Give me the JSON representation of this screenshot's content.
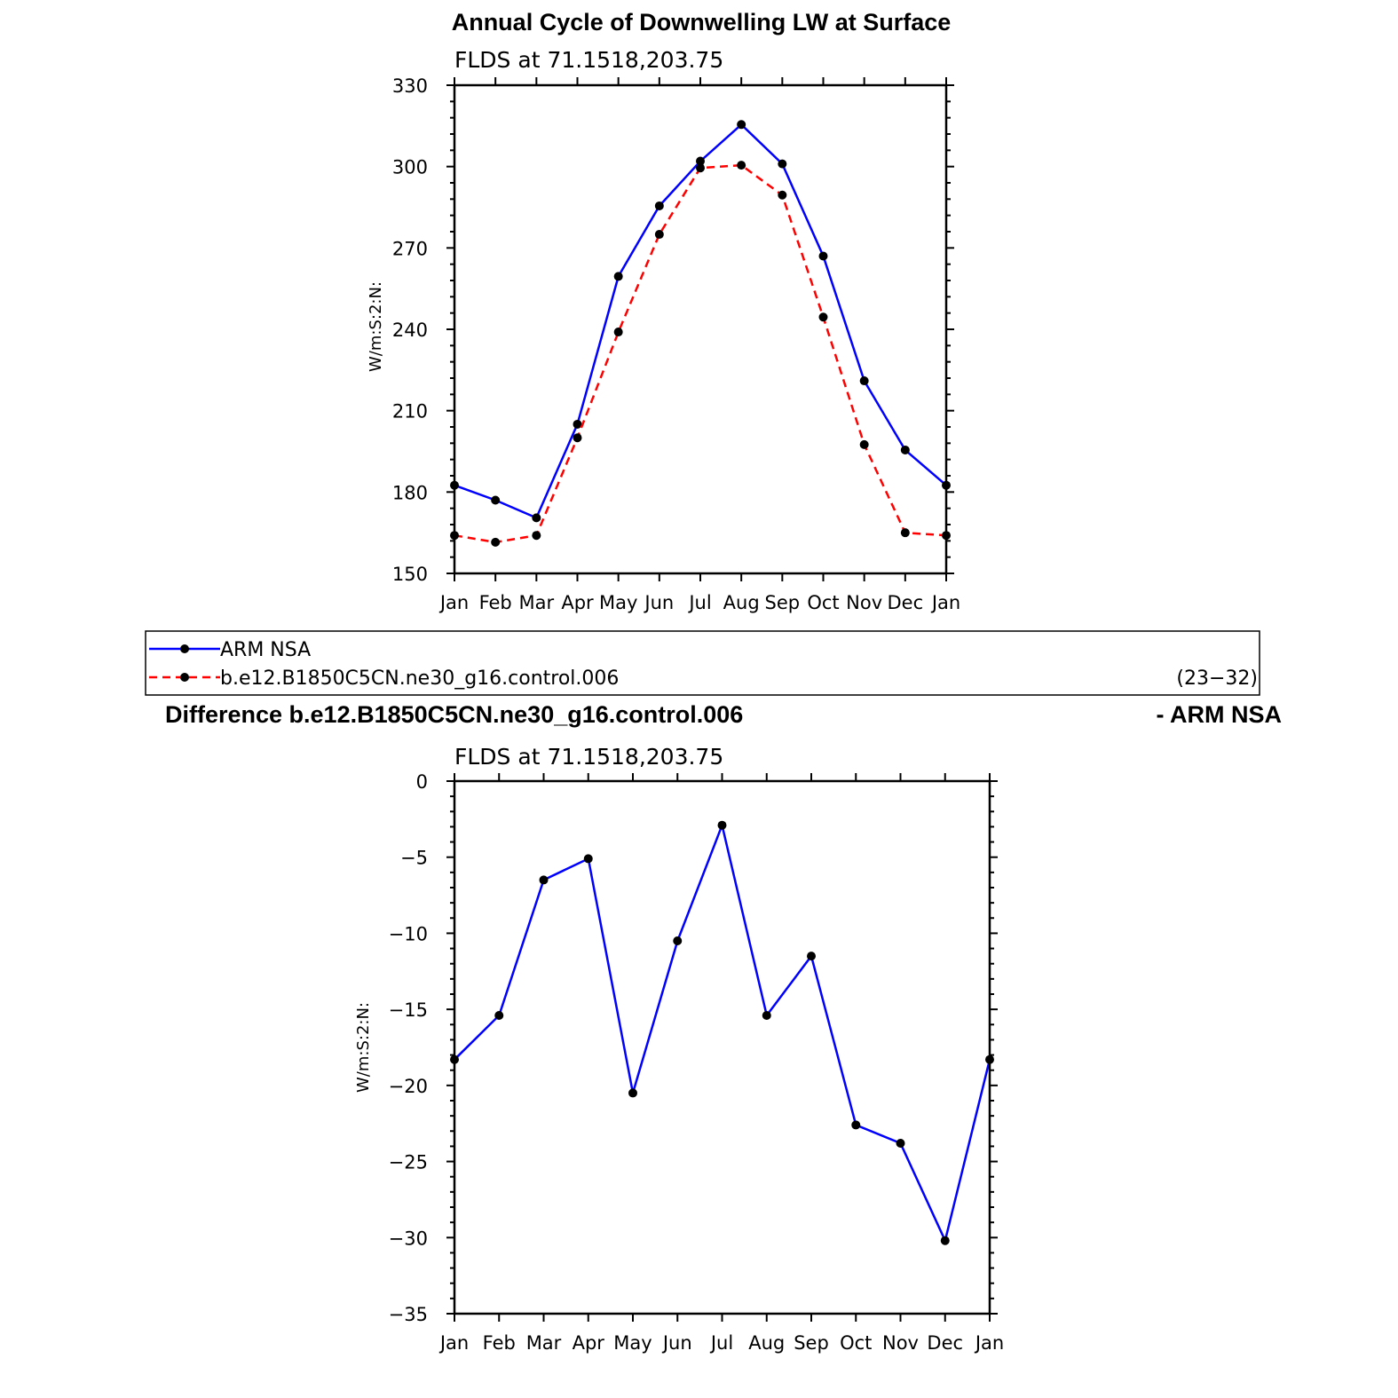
{
  "chart_data": [
    {
      "type": "line",
      "title": "Annual Cycle of Downwelling LW at Surface",
      "subtitle": "FLDS at 71.1518,203.75",
      "xlabel": "",
      "ylabel": "W/m:S:2:N:",
      "categories": [
        "Jan",
        "Feb",
        "Mar",
        "Apr",
        "May",
        "Jun",
        "Jul",
        "Aug",
        "Sep",
        "Oct",
        "Nov",
        "Dec",
        "Jan"
      ],
      "ylim": [
        150,
        330
      ],
      "yticks": [
        "150",
        "180",
        "210",
        "240",
        "270",
        "300",
        "330"
      ],
      "series": [
        {
          "name": "ARM NSA",
          "color": "#0000ff",
          "dash": "solid",
          "values": [
            182.5,
            177,
            170.5,
            205,
            259.5,
            285.5,
            302,
            315.5,
            301,
            267,
            221,
            195.5,
            182.5
          ]
        },
        {
          "name": "b.e12.B1850C5CN.ne30_g16.control.006",
          "color": "#ff0000",
          "dash": "dashed",
          "values": [
            164,
            161.5,
            164,
            200,
            239,
            275,
            299.5,
            300.5,
            289.5,
            244.5,
            197.5,
            165,
            164
          ]
        }
      ],
      "legend_note": "(23−32)",
      "legend": "below"
    },
    {
      "type": "line",
      "title_left": "Difference b.e12.B1850C5CN.ne30_g16.control.006",
      "title_right": "- ARM NSA",
      "subtitle": "FLDS at 71.1518,203.75",
      "xlabel": "",
      "ylabel": "W/m:S:2:N:",
      "categories": [
        "Jan",
        "Feb",
        "Mar",
        "Apr",
        "May",
        "Jun",
        "Jul",
        "Aug",
        "Sep",
        "Oct",
        "Nov",
        "Dec",
        "Jan"
      ],
      "ylim": [
        -35,
        0
      ],
      "yticks": [
        "−35",
        "−30",
        "−25",
        "−20",
        "−15",
        "−10",
        "−5",
        "0"
      ],
      "series": [
        {
          "color": "#0000ff",
          "values": [
            -18.3,
            -15.4,
            -6.5,
            -5.1,
            -20.5,
            -10.5,
            -2.9,
            -15.4,
            -11.5,
            -22.6,
            -23.8,
            -30.2,
            -18.3
          ]
        }
      ]
    }
  ]
}
